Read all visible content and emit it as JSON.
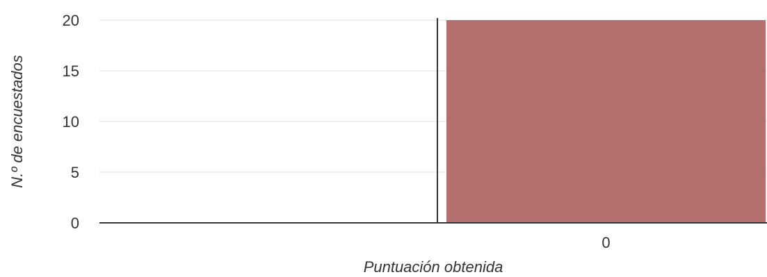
{
  "chart_data": {
    "type": "bar",
    "categories": [
      "0"
    ],
    "values": [
      20
    ],
    "xlabel": "Puntuación obtenida",
    "ylabel": "N.º de encuestados",
    "ylim": [
      0,
      20
    ],
    "yticks": [
      0,
      5,
      10,
      15,
      20
    ],
    "grid": true,
    "legend": "none",
    "bar_color": "#b26f6e",
    "grid_color": "#ebebeb",
    "axis_color": "#333333"
  }
}
